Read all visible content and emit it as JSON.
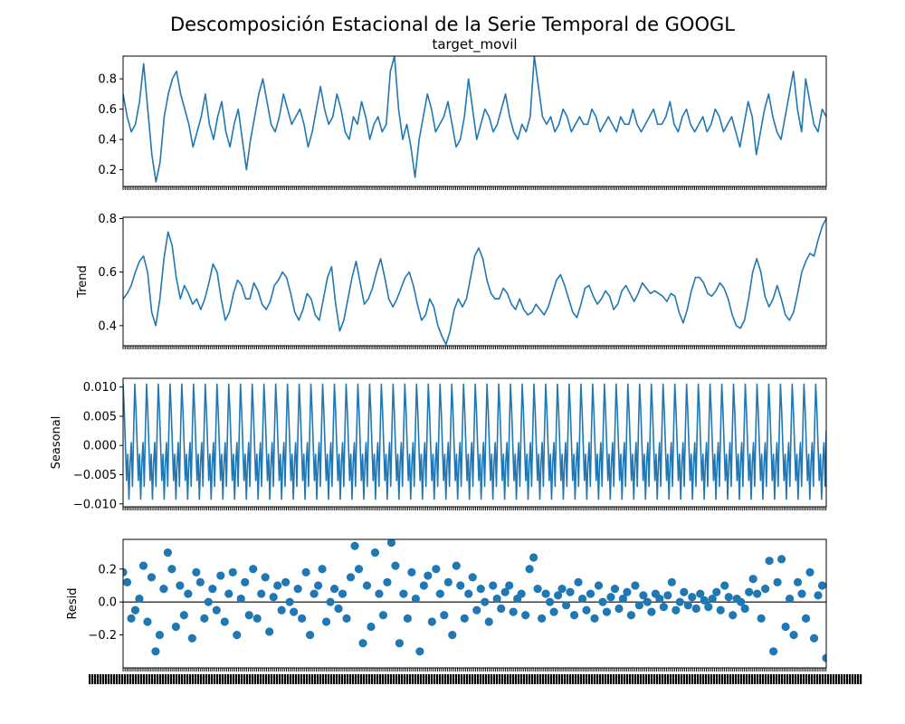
{
  "title": "Descomposición Estacional de la Serie Temporal de GOOGL",
  "colors": {
    "series": "#1f77b4",
    "axis": "#000000",
    "background": "#ffffff"
  },
  "chart_data": [
    {
      "type": "line",
      "title": "target_movil",
      "ylabel": "",
      "ylim": [
        0.09,
        0.95
      ],
      "yticks": [
        0.2,
        0.4,
        0.6,
        0.8
      ],
      "ytick_labels": [
        "0.2",
        "0.4",
        "0.6",
        "0.8"
      ],
      "grid": false,
      "series": [
        {
          "values": [
            0.7,
            0.55,
            0.45,
            0.5,
            0.65,
            0.9,
            0.6,
            0.3,
            0.12,
            0.25,
            0.55,
            0.7,
            0.8,
            0.85,
            0.7,
            0.6,
            0.5,
            0.35,
            0.45,
            0.55,
            0.7,
            0.5,
            0.4,
            0.55,
            0.65,
            0.45,
            0.35,
            0.5,
            0.6,
            0.4,
            0.2,
            0.4,
            0.55,
            0.7,
            0.8,
            0.65,
            0.5,
            0.45,
            0.55,
            0.7,
            0.6,
            0.5,
            0.55,
            0.6,
            0.5,
            0.35,
            0.45,
            0.6,
            0.75,
            0.6,
            0.5,
            0.55,
            0.7,
            0.6,
            0.45,
            0.4,
            0.55,
            0.5,
            0.65,
            0.55,
            0.4,
            0.5,
            0.55,
            0.45,
            0.5,
            0.85,
            0.95,
            0.6,
            0.4,
            0.5,
            0.35,
            0.15,
            0.4,
            0.55,
            0.7,
            0.6,
            0.45,
            0.5,
            0.55,
            0.65,
            0.5,
            0.35,
            0.4,
            0.55,
            0.8,
            0.6,
            0.4,
            0.5,
            0.6,
            0.55,
            0.45,
            0.5,
            0.6,
            0.7,
            0.55,
            0.45,
            0.4,
            0.5,
            0.45,
            0.55,
            0.95,
            0.75,
            0.55,
            0.5,
            0.55,
            0.45,
            0.5,
            0.6,
            0.55,
            0.45,
            0.5,
            0.55,
            0.5,
            0.5,
            0.6,
            0.55,
            0.45,
            0.5,
            0.55,
            0.5,
            0.45,
            0.55,
            0.5,
            0.5,
            0.6,
            0.5,
            0.45,
            0.5,
            0.55,
            0.6,
            0.5,
            0.5,
            0.55,
            0.65,
            0.5,
            0.45,
            0.55,
            0.6,
            0.5,
            0.45,
            0.5,
            0.55,
            0.45,
            0.5,
            0.6,
            0.55,
            0.45,
            0.5,
            0.55,
            0.45,
            0.35,
            0.5,
            0.65,
            0.55,
            0.3,
            0.45,
            0.6,
            0.7,
            0.55,
            0.45,
            0.4,
            0.55,
            0.7,
            0.85,
            0.6,
            0.45,
            0.8,
            0.65,
            0.5,
            0.45,
            0.6,
            0.55
          ],
          "color": "#1f77b4"
        }
      ]
    },
    {
      "type": "line",
      "title": "",
      "ylabel": "Trend",
      "ylim": [
        0.325,
        0.805
      ],
      "yticks": [
        0.4,
        0.6,
        0.8
      ],
      "ytick_labels": [
        "0.4",
        "0.6",
        "0.8"
      ],
      "grid": false,
      "series": [
        {
          "values": [
            0.5,
            0.52,
            0.55,
            0.6,
            0.64,
            0.66,
            0.6,
            0.45,
            0.4,
            0.5,
            0.65,
            0.75,
            0.7,
            0.58,
            0.5,
            0.55,
            0.52,
            0.48,
            0.5,
            0.46,
            0.5,
            0.56,
            0.63,
            0.6,
            0.5,
            0.42,
            0.45,
            0.52,
            0.57,
            0.55,
            0.5,
            0.5,
            0.56,
            0.53,
            0.48,
            0.46,
            0.49,
            0.55,
            0.57,
            0.6,
            0.58,
            0.52,
            0.45,
            0.42,
            0.46,
            0.52,
            0.5,
            0.44,
            0.42,
            0.5,
            0.58,
            0.62,
            0.48,
            0.38,
            0.42,
            0.5,
            0.58,
            0.64,
            0.56,
            0.48,
            0.5,
            0.54,
            0.6,
            0.65,
            0.58,
            0.5,
            0.47,
            0.5,
            0.54,
            0.58,
            0.6,
            0.55,
            0.48,
            0.42,
            0.44,
            0.5,
            0.47,
            0.4,
            0.36,
            0.33,
            0.38,
            0.46,
            0.5,
            0.47,
            0.5,
            0.58,
            0.66,
            0.69,
            0.65,
            0.57,
            0.52,
            0.5,
            0.5,
            0.54,
            0.52,
            0.48,
            0.46,
            0.5,
            0.46,
            0.44,
            0.45,
            0.48,
            0.46,
            0.44,
            0.47,
            0.52,
            0.57,
            0.59,
            0.55,
            0.5,
            0.45,
            0.43,
            0.48,
            0.54,
            0.55,
            0.51,
            0.48,
            0.5,
            0.53,
            0.51,
            0.46,
            0.48,
            0.53,
            0.55,
            0.52,
            0.49,
            0.52,
            0.56,
            0.54,
            0.52,
            0.53,
            0.52,
            0.51,
            0.49,
            0.52,
            0.51,
            0.45,
            0.41,
            0.46,
            0.53,
            0.58,
            0.58,
            0.56,
            0.52,
            0.51,
            0.53,
            0.56,
            0.54,
            0.5,
            0.44,
            0.4,
            0.39,
            0.42,
            0.5,
            0.6,
            0.65,
            0.6,
            0.51,
            0.47,
            0.5,
            0.55,
            0.5,
            0.44,
            0.42,
            0.45,
            0.52,
            0.6,
            0.64,
            0.67,
            0.66,
            0.72,
            0.77,
            0.8
          ],
          "color": "#1f77b4"
        }
      ]
    },
    {
      "type": "line",
      "title": "",
      "ylabel": "Seasonal",
      "ylim": [
        -0.0105,
        0.0115
      ],
      "yticks": [
        -0.01,
        -0.005,
        0.0,
        0.005,
        0.01
      ],
      "ytick_labels": [
        "−0.010",
        "−0.005",
        "0.000",
        "0.005",
        "0.010"
      ],
      "grid": false,
      "series": [
        {
          "pattern": [
            0.0105,
            0.006,
            0.0,
            -0.006,
            -0.0015,
            -0.0092,
            -0.003,
            0.0005,
            -0.007,
            0.0025
          ],
          "repeats": 60,
          "color": "#1f77b4"
        }
      ]
    },
    {
      "type": "scatter",
      "title": "",
      "ylabel": "Resid",
      "ylim": [
        -0.4,
        0.38
      ],
      "yticks": [
        -0.2,
        0.0,
        0.2
      ],
      "ytick_labels": [
        "−0.2",
        "0.0",
        "0.2"
      ],
      "reference_line": 0.0,
      "grid": false,
      "series": [
        {
          "values": [
            0.18,
            0.12,
            -0.1,
            -0.05,
            0.02,
            0.22,
            -0.12,
            0.15,
            -0.3,
            -0.2,
            0.08,
            0.3,
            0.2,
            -0.15,
            0.1,
            -0.08,
            0.05,
            -0.22,
            0.18,
            0.12,
            -0.1,
            0.0,
            0.08,
            -0.05,
            0.16,
            -0.12,
            0.05,
            0.18,
            -0.2,
            0.02,
            0.12,
            -0.08,
            0.2,
            -0.1,
            0.05,
            0.15,
            -0.18,
            0.03,
            0.1,
            -0.05,
            0.12,
            0.0,
            -0.06,
            0.08,
            -0.1,
            0.18,
            -0.2,
            0.05,
            0.1,
            0.2,
            -0.12,
            0.0,
            0.08,
            -0.04,
            0.05,
            -0.1,
            0.15,
            0.34,
            0.2,
            -0.25,
            0.1,
            -0.15,
            0.3,
            0.05,
            -0.08,
            0.12,
            0.36,
            0.22,
            -0.25,
            0.05,
            -0.1,
            0.18,
            0.02,
            -0.3,
            0.1,
            0.16,
            -0.12,
            0.2,
            0.05,
            -0.08,
            0.12,
            -0.2,
            0.22,
            0.1,
            -0.1,
            0.05,
            0.15,
            -0.05,
            0.08,
            0.0,
            -0.12,
            0.1,
            0.02,
            -0.04,
            0.06,
            0.1,
            -0.06,
            0.02,
            0.05,
            -0.08,
            0.2,
            0.27,
            0.08,
            -0.1,
            0.05,
            0.0,
            -0.06,
            0.04,
            0.08,
            -0.02,
            0.06,
            -0.08,
            0.12,
            0.02,
            -0.05,
            0.05,
            -0.1,
            0.1,
            0.0,
            -0.06,
            0.03,
            0.08,
            -0.04,
            0.02,
            0.06,
            -0.08,
            0.1,
            -0.02,
            0.04,
            0.0,
            -0.06,
            0.05,
            0.02,
            -0.03,
            0.04,
            0.12,
            -0.05,
            0.0,
            0.06,
            -0.02,
            0.03,
            -0.04,
            0.05,
            0.01,
            -0.03,
            0.02,
            0.06,
            -0.05,
            0.1,
            0.03,
            -0.08,
            0.02,
            0.0,
            -0.04,
            0.06,
            0.14,
            0.05,
            -0.1,
            0.08,
            0.25,
            -0.3,
            0.12,
            0.26,
            -0.15,
            0.02,
            -0.2,
            0.12,
            0.05,
            -0.1,
            0.18,
            -0.22,
            0.04,
            0.1,
            -0.34
          ],
          "color": "#1f77b4"
        }
      ]
    }
  ]
}
